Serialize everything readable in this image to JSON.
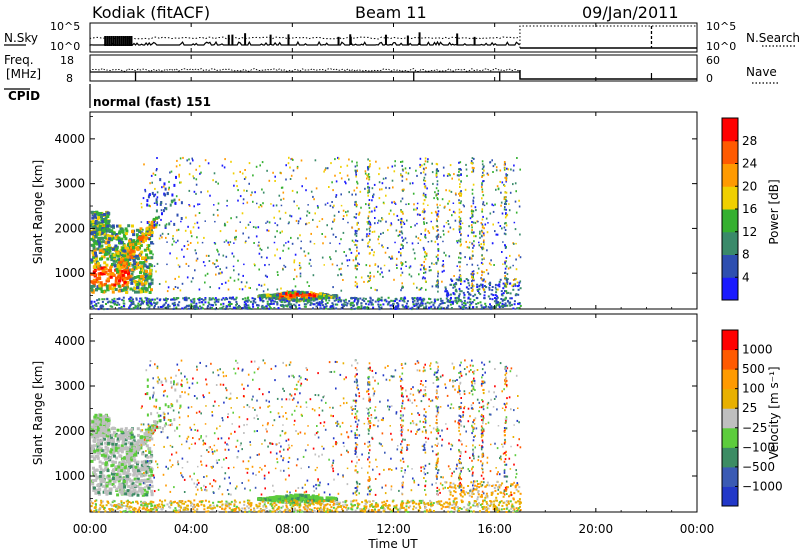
{
  "header": {
    "radar": "Kodiak (fitACF)",
    "beam": "Beam 11",
    "date": "09/Jan/2011"
  },
  "colors": {
    "power": [
      "#1a1aff",
      "#2e4fb0",
      "#3a8a6a",
      "#35b030",
      "#f0d000",
      "#ff9a00",
      "#ff5a00",
      "#ff0000"
    ],
    "velocity": [
      "#2238c8",
      "#3a5ab4",
      "#3c8c64",
      "#5ccc3c",
      "#bfbfbf",
      "#e8b000",
      "#ff9a00",
      "#ff5a00",
      "#ff0000"
    ]
  },
  "chart_data": [
    {
      "type": "line",
      "panel": "nsky-nsearch",
      "left_label": "N.Sky",
      "right_label": "N.Search",
      "left_ticks": [
        "10^5",
        "10^0"
      ],
      "right_ticks": [
        "10^5",
        "10^0"
      ]
    },
    {
      "type": "line",
      "panel": "freq-nave",
      "left_label": "Freq.",
      "left_label_unit": "[MHz]",
      "right_label": "Nave",
      "left_ticks": [
        "18",
        "8"
      ],
      "right_ticks": [
        "60",
        "0"
      ],
      "cpid_label": "CPID",
      "cpid_value": "normal (fast) 151"
    },
    {
      "type": "heatmap",
      "panel": "power",
      "ylabel": "Slant Range [km]",
      "ylim": [
        200,
        4600
      ],
      "y_ticks": [
        "4000",
        "3000",
        "2000",
        "1000"
      ],
      "y_tick_values": [
        4000,
        3000,
        2000,
        1000
      ],
      "colorbar_label": "Power [dB]",
      "colorbar_ticks": [
        "28",
        "24",
        "20",
        "16",
        "12",
        "8",
        "4"
      ]
    },
    {
      "type": "heatmap",
      "panel": "velocity",
      "ylabel": "Slant Range [km]",
      "ylim": [
        200,
        4600
      ],
      "y_ticks": [
        "4000",
        "3000",
        "2000",
        "1000"
      ],
      "y_tick_values": [
        4000,
        3000,
        2000,
        1000
      ],
      "colorbar_label": "Velocity [m s⁻¹]",
      "colorbar_ticks": [
        "1000",
        "500",
        "100",
        "25",
        "−25",
        "−100",
        "−500",
        "−1000"
      ]
    }
  ],
  "x_axis": {
    "xlabel": "Time UT",
    "x_ticks": [
      "00:00",
      "04:00",
      "08:00",
      "12:00",
      "16:00",
      "20:00",
      "00:00"
    ],
    "x_tick_hours": [
      0,
      4,
      8,
      12,
      16,
      20,
      24
    ],
    "data_end_hour": 17
  }
}
